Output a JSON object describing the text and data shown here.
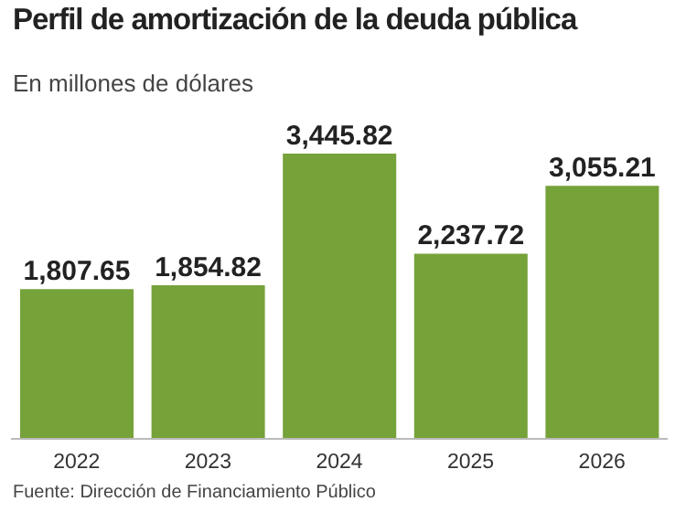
{
  "chart_data": {
    "type": "bar",
    "title": "Perfil de amortización de la deuda pública",
    "subtitle": "En millones de dólares",
    "categories": [
      "2022",
      "2023",
      "2024",
      "2025",
      "2026"
    ],
    "values": [
      1807.65,
      1854.82,
      3445.82,
      2237.72,
      3055.21
    ],
    "value_labels": [
      "1,807.65",
      "1,854.82",
      "3,445.82",
      "2,237.72",
      "3,055.21"
    ],
    "color": "#76a23a",
    "grid": false,
    "annotations": [
      "Fuente: Dirección de Financiamiento Público"
    ]
  }
}
